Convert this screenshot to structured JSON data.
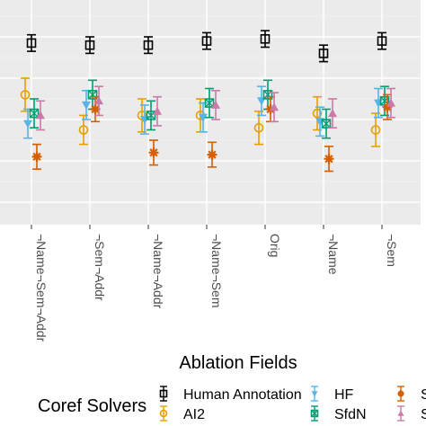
{
  "chart_data": {
    "type": "scatter",
    "subtype": "point-with-errorbars",
    "xlabel": "Ablation Fields",
    "ylabel": "",
    "categories": [
      "¬Name¬Sem¬Addr",
      "¬Sem¬Addr",
      "¬Name¬Addr",
      "¬Name¬Sem",
      "Orig",
      "¬Name",
      "¬Sem"
    ],
    "ylim": [
      0,
      1
    ],
    "grid": true,
    "legend_position": "bottom",
    "legend_title": "Coref Solvers",
    "series": [
      {
        "name": "Human Annotation",
        "color": "#000000",
        "marker": "square-open",
        "values": [
          0.87,
          0.86,
          0.86,
          0.88,
          0.89,
          0.82,
          0.88
        ],
        "err": [
          0.04,
          0.04,
          0.04,
          0.04,
          0.04,
          0.04,
          0.04
        ]
      },
      {
        "name": "AI2",
        "color": "#E69F00",
        "marker": "circle-open",
        "values": [
          0.62,
          0.45,
          0.52,
          0.52,
          0.46,
          0.53,
          0.45
        ],
        "err": [
          0.08,
          0.07,
          0.08,
          0.08,
          0.08,
          0.08,
          0.08
        ]
      },
      {
        "name": "HF",
        "color": "#56B4E9",
        "marker": "triangle-down",
        "values": [
          0.48,
          0.57,
          0.5,
          0.51,
          0.59,
          0.49,
          0.58
        ],
        "err": [
          0.07,
          0.07,
          0.07,
          0.07,
          0.07,
          0.07,
          0.07
        ]
      },
      {
        "name": "SfdN",
        "color": "#009E73",
        "marker": "square-x",
        "values": [
          0.53,
          0.62,
          0.52,
          0.58,
          0.62,
          0.48,
          0.59
        ],
        "err": [
          0.07,
          0.07,
          0.07,
          0.07,
          0.07,
          0.07,
          0.07
        ]
      },
      {
        "name": "Sfd",
        "color": "#D55E00",
        "marker": "asterisk",
        "values": [
          0.32,
          0.55,
          0.34,
          0.33,
          0.55,
          0.31,
          0.56
        ],
        "err": [
          0.06,
          0.06,
          0.06,
          0.06,
          0.06,
          0.06,
          0.06
        ]
      },
      {
        "name": "Sfd",
        "color": "#CC79A7",
        "marker": "triangle-up",
        "values": [
          0.52,
          0.59,
          0.54,
          0.57,
          0.56,
          0.53,
          0.58
        ],
        "err": [
          0.07,
          0.07,
          0.07,
          0.07,
          0.07,
          0.07,
          0.07
        ]
      }
    ]
  }
}
